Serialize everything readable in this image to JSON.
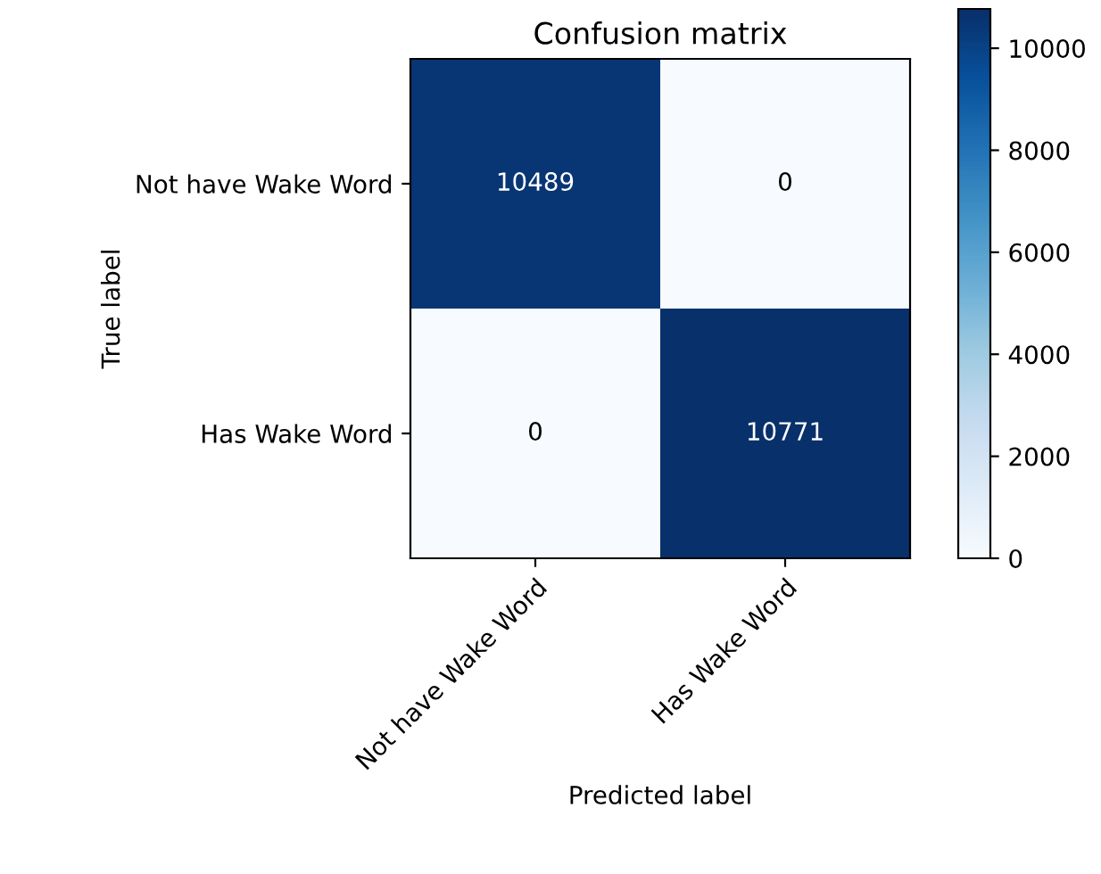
{
  "chart_data": {
    "type": "heatmap",
    "title": "Confusion matrix",
    "xlabel": "Predicted label",
    "ylabel": "True label",
    "categories": [
      "Not have Wake Word",
      "Has Wake Word"
    ],
    "y_categories": [
      "Not have Wake Word",
      "Has Wake Word"
    ],
    "cells": [
      [
        10489,
        0
      ],
      [
        0,
        10771
      ]
    ],
    "clim": [
      0,
      10771
    ],
    "cticks": [
      0,
      2000,
      4000,
      6000,
      8000,
      10000
    ],
    "data_labels": true
  }
}
